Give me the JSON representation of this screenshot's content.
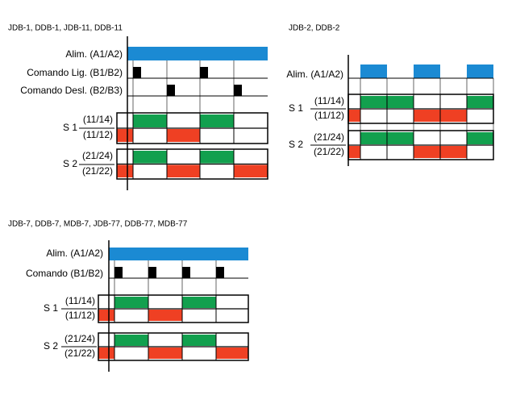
{
  "diagrams": [
    {
      "title": "JDB-1, DDB-1, JDB-11, DDB-11",
      "rows": [
        "Alim. (A1/A2)",
        "Comando Lig. (B1/B2)",
        "Comando Desl. (B2/B3)"
      ],
      "groups": [
        {
          "label": "S 1",
          "contacts": [
            "(11/14)",
            "(11/12)"
          ]
        },
        {
          "label": "S 2",
          "contacts": [
            "(21/24)",
            "(21/22)"
          ]
        }
      ]
    },
    {
      "title": "JDB-2, DDB-2",
      "rows": [
        "Alim. (A1/A2)"
      ],
      "groups": [
        {
          "label": "S 1",
          "contacts": [
            "(11/14)",
            "(11/12)"
          ]
        },
        {
          "label": "S 2",
          "contacts": [
            "(21/24)",
            "(21/22)"
          ]
        }
      ]
    },
    {
      "title": "JDB-7, DDB-7, MDB-7, JDB-77, DDB-77, MDB-77",
      "rows": [
        "Alim. (A1/A2)",
        "Comando (B1/B2)"
      ],
      "groups": [
        {
          "label": "S 1",
          "contacts": [
            "(11/14)",
            "(11/12)"
          ]
        },
        {
          "label": "S 2",
          "contacts": [
            "(21/24)",
            "(21/22)"
          ]
        }
      ]
    }
  ]
}
